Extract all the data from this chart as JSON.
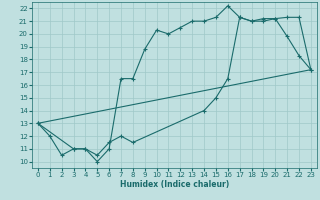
{
  "xlabel": "Humidex (Indice chaleur)",
  "xlim": [
    -0.5,
    23.5
  ],
  "ylim": [
    9.5,
    22.5
  ],
  "xticks": [
    0,
    1,
    2,
    3,
    4,
    5,
    6,
    7,
    8,
    9,
    10,
    11,
    12,
    13,
    14,
    15,
    16,
    17,
    18,
    19,
    20,
    21,
    22,
    23
  ],
  "yticks": [
    10,
    11,
    12,
    13,
    14,
    15,
    16,
    17,
    18,
    19,
    20,
    21,
    22
  ],
  "bg_color": "#c0e0e0",
  "line_color": "#1a6b6b",
  "grid_color": "#a0c8c8",
  "line1_x": [
    0,
    1,
    2,
    3,
    4,
    5,
    6,
    7,
    8,
    9,
    10,
    11,
    12,
    13,
    14,
    15,
    16,
    17,
    18,
    19,
    20,
    21,
    22,
    23
  ],
  "line1_y": [
    13,
    12,
    10.5,
    11,
    11,
    10,
    11,
    16.5,
    16.5,
    18.8,
    20.3,
    20,
    20.5,
    21,
    21,
    21.3,
    22.2,
    21.3,
    21,
    21,
    21.2,
    19.8,
    18.3,
    17.2
  ],
  "line2_x": [
    0,
    3,
    4,
    5,
    6,
    7,
    8,
    14,
    15,
    16,
    17,
    18,
    19,
    20,
    21,
    22,
    23
  ],
  "line2_y": [
    13,
    11,
    11,
    10.5,
    11.5,
    12,
    11.5,
    14,
    15,
    16.5,
    21.3,
    21,
    21.2,
    21.2,
    21.3,
    21.3,
    17.2
  ],
  "line3_x": [
    0,
    23
  ],
  "line3_y": [
    13,
    17.2
  ]
}
